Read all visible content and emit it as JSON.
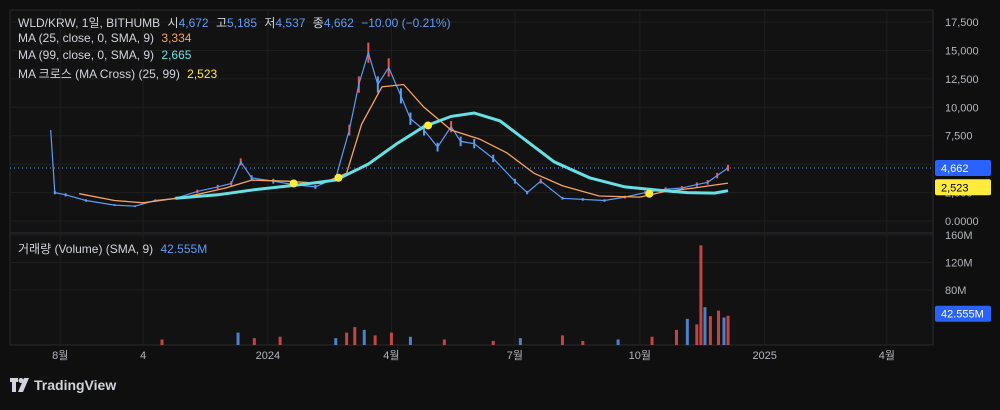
{
  "header": {
    "symbol": "WLD/KRW, 1일, BITHUMB",
    "open_label": "시",
    "open": "4,672",
    "high_label": "고",
    "high": "5,185",
    "low_label": "저",
    "low": "4,537",
    "close_label": "종",
    "close": "4,662",
    "change": "−10.00 (−0.21%)"
  },
  "indicators": [
    {
      "label": "MA (25, close, 0, SMA, 9)",
      "value": "3,334",
      "color": "#f7a35c"
    },
    {
      "label": "MA (99, close, 0, SMA, 9)",
      "value": "2,665",
      "color": "#67e0e3"
    },
    {
      "label": "MA 크로스 (MA Cross) (25, 99)",
      "value": "2,523",
      "color": "#ffeb3b"
    }
  ],
  "volume_legend": {
    "label": "거래량 (Volume) (SMA, 9)",
    "value": "42.555M"
  },
  "price_badges": {
    "last": "4,662",
    "cross": "2,523",
    "volume": "42.555M"
  },
  "footer": {
    "brand": "TradingView"
  },
  "colors": {
    "up": "#ef5350",
    "down": "#5b9cf6",
    "ma25": "#f7a35c",
    "ma99": "#67e0e3",
    "cross": "#ffeb3b"
  },
  "chart_data": {
    "type": "candlestick+line",
    "price_axis": {
      "min": 0,
      "max": 17500,
      "ticks": [
        "17,500",
        "15,000",
        "12,500",
        "10,000",
        "7,500",
        "5,000",
        "2,500",
        "0.0000"
      ],
      "tick_values": [
        17500,
        15000,
        12500,
        10000,
        7500,
        5000,
        2500,
        0
      ]
    },
    "volume_axis": {
      "ticks": [
        "160M",
        "120M",
        "80M"
      ],
      "tick_values": [
        160,
        120,
        80
      ],
      "max": 160
    },
    "x_axis": {
      "ticks": [
        "8월",
        "4",
        "2024",
        "4월",
        "7월",
        "10월",
        "2025",
        "4월"
      ],
      "tick_dates": [
        "2023-08-01",
        "2023-10-01",
        "2024-01-01",
        "2024-04-01",
        "2024-07-01",
        "2024-10-01",
        "2025-01-01",
        "2025-04-01"
      ]
    },
    "grid": true,
    "series": [
      {
        "name": "Price",
        "points": [
          [
            "2023-07-25",
            8000
          ],
          [
            "2023-07-28",
            2500
          ],
          [
            "2023-08-05",
            2300
          ],
          [
            "2023-08-20",
            1800
          ],
          [
            "2023-09-10",
            1400
          ],
          [
            "2023-09-25",
            1300
          ],
          [
            "2023-10-10",
            1800
          ],
          [
            "2023-10-25",
            2000
          ],
          [
            "2023-11-10",
            2600
          ],
          [
            "2023-11-25",
            3000
          ],
          [
            "2023-12-05",
            3300
          ],
          [
            "2023-12-12",
            5200
          ],
          [
            "2023-12-20",
            3800
          ],
          [
            "2024-01-05",
            3500
          ],
          [
            "2024-01-20",
            3200
          ],
          [
            "2024-02-05",
            3000
          ],
          [
            "2024-02-20",
            3800
          ],
          [
            "2024-03-01",
            8000
          ],
          [
            "2024-03-08",
            12000
          ],
          [
            "2024-03-15",
            14800
          ],
          [
            "2024-03-22",
            12000
          ],
          [
            "2024-03-30",
            13500
          ],
          [
            "2024-04-08",
            11000
          ],
          [
            "2024-04-15",
            9000
          ],
          [
            "2024-04-25",
            8000
          ],
          [
            "2024-05-05",
            6500
          ],
          [
            "2024-05-15",
            8300
          ],
          [
            "2024-05-22",
            7000
          ],
          [
            "2024-06-01",
            6800
          ],
          [
            "2024-06-15",
            5500
          ],
          [
            "2024-07-01",
            3500
          ],
          [
            "2024-07-10",
            2500
          ],
          [
            "2024-07-20",
            3500
          ],
          [
            "2024-08-05",
            2000
          ],
          [
            "2024-08-20",
            1900
          ],
          [
            "2024-09-05",
            1800
          ],
          [
            "2024-09-20",
            2100
          ],
          [
            "2024-10-05",
            2500
          ],
          [
            "2024-10-20",
            2800
          ],
          [
            "2024-11-01",
            2900
          ],
          [
            "2024-11-12",
            3200
          ],
          [
            "2024-11-20",
            3400
          ],
          [
            "2024-11-27",
            4000
          ],
          [
            "2024-12-05",
            4662
          ]
        ]
      },
      {
        "name": "MA (25, close, 0, SMA, 9)",
        "points": [
          [
            "2023-08-15",
            2400
          ],
          [
            "2023-09-10",
            1800
          ],
          [
            "2023-10-01",
            1600
          ],
          [
            "2023-11-01",
            2100
          ],
          [
            "2023-12-01",
            2900
          ],
          [
            "2023-12-20",
            3600
          ],
          [
            "2024-01-15",
            3500
          ],
          [
            "2024-02-10",
            3300
          ],
          [
            "2024-02-28",
            4200
          ],
          [
            "2024-03-10",
            8500
          ],
          [
            "2024-03-25",
            11800
          ],
          [
            "2024-04-10",
            12000
          ],
          [
            "2024-04-25",
            10000
          ],
          [
            "2024-05-15",
            8000
          ],
          [
            "2024-06-05",
            7200
          ],
          [
            "2024-06-25",
            6000
          ],
          [
            "2024-07-15",
            4200
          ],
          [
            "2024-08-05",
            3100
          ],
          [
            "2024-09-01",
            2200
          ],
          [
            "2024-10-01",
            2100
          ],
          [
            "2024-10-20",
            2600
          ],
          [
            "2024-11-10",
            2900
          ],
          [
            "2024-12-05",
            3334
          ]
        ]
      },
      {
        "name": "MA (99, close, 0, SMA, 9)",
        "points": [
          [
            "2023-10-25",
            2000
          ],
          [
            "2023-11-25",
            2300
          ],
          [
            "2023-12-25",
            2800
          ],
          [
            "2024-01-25",
            3200
          ],
          [
            "2024-02-20",
            3600
          ],
          [
            "2024-03-15",
            5000
          ],
          [
            "2024-04-05",
            6800
          ],
          [
            "2024-04-25",
            8300
          ],
          [
            "2024-05-15",
            9200
          ],
          [
            "2024-06-01",
            9500
          ],
          [
            "2024-06-20",
            8800
          ],
          [
            "2024-07-10",
            7000
          ],
          [
            "2024-07-30",
            5200
          ],
          [
            "2024-08-25",
            3800
          ],
          [
            "2024-09-20",
            3000
          ],
          [
            "2024-10-15",
            2700
          ],
          [
            "2024-11-05",
            2500
          ],
          [
            "2024-11-25",
            2450
          ],
          [
            "2024-12-05",
            2665
          ]
        ]
      }
    ],
    "cross_points": [
      [
        "2024-01-20",
        3300
      ],
      [
        "2024-02-22",
        3800
      ],
      [
        "2024-04-28",
        8400
      ],
      [
        "2024-10-08",
        2400
      ]
    ],
    "volume": [
      [
        "2023-10-15",
        8
      ],
      [
        "2023-12-10",
        18
      ],
      [
        "2023-12-22",
        10
      ],
      [
        "2024-01-10",
        12
      ],
      [
        "2024-02-20",
        10
      ],
      [
        "2024-02-28",
        18
      ],
      [
        "2024-03-05",
        26
      ],
      [
        "2024-03-12",
        22
      ],
      [
        "2024-03-20",
        14
      ],
      [
        "2024-04-01",
        18
      ],
      [
        "2024-04-15",
        12
      ],
      [
        "2024-05-10",
        8
      ],
      [
        "2024-06-15",
        6
      ],
      [
        "2024-07-05",
        10
      ],
      [
        "2024-08-05",
        14
      ],
      [
        "2024-08-20",
        6
      ],
      [
        "2024-09-15",
        8
      ],
      [
        "2024-10-10",
        12
      ],
      [
        "2024-10-28",
        22
      ],
      [
        "2024-11-05",
        38
      ],
      [
        "2024-11-12",
        30
      ],
      [
        "2024-11-15",
        145
      ],
      [
        "2024-11-18",
        55
      ],
      [
        "2024-11-22",
        42
      ],
      [
        "2024-11-28",
        50
      ],
      [
        "2024-12-02",
        40
      ],
      [
        "2024-12-05",
        42.555
      ]
    ]
  }
}
